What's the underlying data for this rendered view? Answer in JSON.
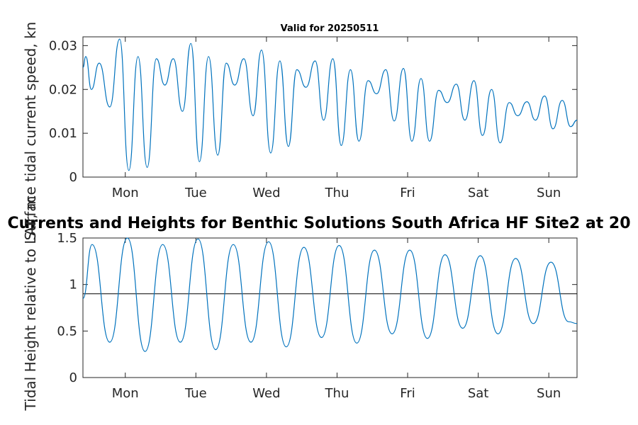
{
  "chart_data": [
    {
      "type": "line",
      "title": "Valid for 20250511",
      "ylabel": "Surface tidal current speed, kn",
      "xlabel": "",
      "xlim": [
        0,
        7
      ],
      "ylim": [
        0,
        0.032
      ],
      "yticks": [
        0,
        0.01,
        0.02,
        0.03
      ],
      "ytick_labels": [
        "0",
        "0.01",
        "0.02",
        "0.03"
      ],
      "xticks": [
        0.6,
        1.6,
        2.6,
        3.6,
        4.6,
        5.6,
        6.6
      ],
      "xtick_labels": [
        "Mon",
        "Tue",
        "Wed",
        "Thu",
        "Fri",
        "Sat",
        "Sun"
      ],
      "grid": false,
      "series": [
        {
          "color": "#0072BD",
          "x": [
            0.0,
            0.04,
            0.12,
            0.23,
            0.38,
            0.52,
            0.65,
            0.78,
            0.91,
            1.04,
            1.16,
            1.28,
            1.41,
            1.53,
            1.65,
            1.78,
            1.91,
            2.03,
            2.15,
            2.28,
            2.41,
            2.53,
            2.66,
            2.79,
            2.91,
            3.03,
            3.16,
            3.29,
            3.41,
            3.54,
            3.66,
            3.79,
            3.91,
            4.04,
            4.16,
            4.29,
            4.41,
            4.54,
            4.66,
            4.79,
            4.91,
            5.04,
            5.16,
            5.29,
            5.41,
            5.54,
            5.66,
            5.79,
            5.91,
            6.04,
            6.16,
            6.29,
            6.41,
            6.54,
            6.66,
            6.79,
            6.91,
            7.0
          ],
          "values": [
            0.025,
            0.0275,
            0.02,
            0.026,
            0.016,
            0.0315,
            0.0015,
            0.0275,
            0.0022,
            0.027,
            0.021,
            0.027,
            0.015,
            0.0305,
            0.0035,
            0.0275,
            0.005,
            0.026,
            0.021,
            0.027,
            0.014,
            0.029,
            0.0055,
            0.0265,
            0.007,
            0.0245,
            0.0205,
            0.0265,
            0.013,
            0.027,
            0.0072,
            0.0245,
            0.0082,
            0.022,
            0.019,
            0.0245,
            0.0128,
            0.0248,
            0.0082,
            0.0225,
            0.0082,
            0.0198,
            0.017,
            0.0212,
            0.013,
            0.022,
            0.0095,
            0.02,
            0.0078,
            0.017,
            0.014,
            0.0172,
            0.013,
            0.0185,
            0.011,
            0.0175,
            0.0115,
            0.013
          ]
        }
      ]
    },
    {
      "type": "line",
      "title": "Currents and Heights for Benthic Solutions South Africa HF Site2 at 20",
      "ylabel": "Tidal Height relative to LAT, m",
      "xlabel": "",
      "xlim": [
        0,
        7
      ],
      "ylim": [
        0,
        1.5
      ],
      "yticks": [
        0,
        0.5,
        1,
        1.5
      ],
      "ytick_labels": [
        "0",
        "0.5",
        "1",
        "1.5"
      ],
      "xticks": [
        0.6,
        1.6,
        2.6,
        3.6,
        4.6,
        5.6,
        6.6
      ],
      "xtick_labels": [
        "Mon",
        "Tue",
        "Wed",
        "Thu",
        "Fri",
        "Sat",
        "Sun"
      ],
      "grid": false,
      "reference_line": 0.9,
      "series": [
        {
          "color": "#0072BD",
          "x": [
            0.0,
            0.13,
            0.38,
            0.63,
            0.88,
            1.13,
            1.38,
            1.63,
            1.88,
            2.13,
            2.38,
            2.63,
            2.88,
            3.13,
            3.38,
            3.63,
            3.88,
            4.13,
            4.38,
            4.63,
            4.88,
            5.13,
            5.38,
            5.63,
            5.88,
            6.13,
            6.38,
            6.63,
            6.88,
            7.0
          ],
          "values": [
            0.85,
            1.43,
            0.38,
            1.5,
            0.28,
            1.43,
            0.38,
            1.49,
            0.3,
            1.43,
            0.38,
            1.46,
            0.33,
            1.4,
            0.43,
            1.42,
            0.37,
            1.37,
            0.47,
            1.37,
            0.42,
            1.32,
            0.53,
            1.31,
            0.47,
            1.28,
            0.58,
            1.24,
            0.6,
            0.58
          ]
        }
      ]
    }
  ]
}
